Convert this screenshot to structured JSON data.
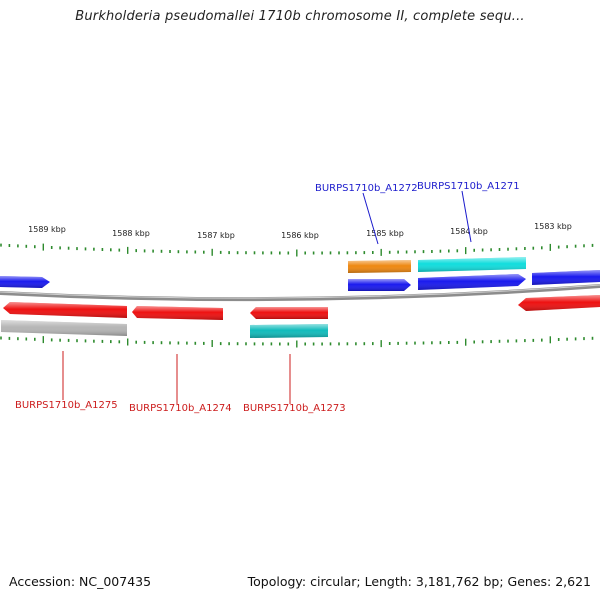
{
  "title": "Burkholderia pseudomallei 1710b chromosome II, complete sequ...",
  "footer": {
    "accession": "Accession: NC_007435",
    "summary": "Topology: circular; Length: 3,181,762 bp; Genes: 2,621"
  },
  "colors": {
    "tick": "#2e8b2e",
    "backbone": "#8c8c8c",
    "label_blue": "#1c1ccc",
    "label_red": "#cc1c1c",
    "gene_blue": "#1a1aee",
    "gene_red": "#ee1111",
    "gene_cyan": "#11dddd",
    "gene_orange": "#ee8811",
    "gene_teal": "#11bbbb",
    "gene_gray": "#b5b5b5"
  },
  "kbp_labels": [
    "1589 kbp",
    "1588 kbp",
    "1587 kbp",
    "1586 kbp",
    "1585 kbp",
    "1584 kbp",
    "1583 kbp"
  ],
  "gene_labels": {
    "top": [
      "BURPS1710b_A1272",
      "BURPS1710b_A1271"
    ],
    "bottom": [
      "BURPS1710b_A1275",
      "BURPS1710b_A1274",
      "BURPS1710b_A1273"
    ]
  }
}
